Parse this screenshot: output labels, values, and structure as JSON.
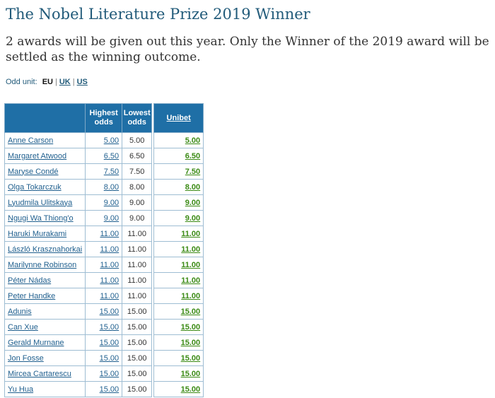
{
  "page": {
    "title": "The Nobel Literature Prize 2019 Winner",
    "subtitle": "2 awards will be given out this year. Only the Winner of the 2019 award will be settled as the winning outcome."
  },
  "odd_unit": {
    "label": "Odd unit:",
    "options": [
      "EU",
      "UK",
      "US"
    ],
    "selected": "EU"
  },
  "table": {
    "headers": {
      "name": "",
      "highest": "Highest odds",
      "lowest": "Lowest odds",
      "bookmaker": "Unibet"
    },
    "rows": [
      {
        "name": "Anne Carson",
        "highest": "5.00",
        "lowest": "5.00",
        "unibet": "5.00"
      },
      {
        "name": "Margaret Atwood",
        "highest": "6.50",
        "lowest": "6.50",
        "unibet": "6.50"
      },
      {
        "name": "Maryse Condé",
        "highest": "7.50",
        "lowest": "7.50",
        "unibet": "7.50"
      },
      {
        "name": "Olga Tokarczuk",
        "highest": "8.00",
        "lowest": "8.00",
        "unibet": "8.00"
      },
      {
        "name": "Lyudmila Ulitskaya",
        "highest": "9.00",
        "lowest": "9.00",
        "unibet": "9.00"
      },
      {
        "name": "Ngugi Wa Thiong'o",
        "highest": "9.00",
        "lowest": "9.00",
        "unibet": "9.00"
      },
      {
        "name": "Haruki Murakami",
        "highest": "11.00",
        "lowest": "11.00",
        "unibet": "11.00"
      },
      {
        "name": "László Krasznahorkai",
        "highest": "11.00",
        "lowest": "11.00",
        "unibet": "11.00"
      },
      {
        "name": "Marilynne Robinson",
        "highest": "11.00",
        "lowest": "11.00",
        "unibet": "11.00"
      },
      {
        "name": "Péter Nádas",
        "highest": "11.00",
        "lowest": "11.00",
        "unibet": "11.00"
      },
      {
        "name": "Peter Handke",
        "highest": "11.00",
        "lowest": "11.00",
        "unibet": "11.00"
      },
      {
        "name": "Adunis",
        "highest": "15.00",
        "lowest": "15.00",
        "unibet": "15.00"
      },
      {
        "name": "Can Xue",
        "highest": "15.00",
        "lowest": "15.00",
        "unibet": "15.00"
      },
      {
        "name": "Gerald Murnane",
        "highest": "15.00",
        "lowest": "15.00",
        "unibet": "15.00"
      },
      {
        "name": "Jon Fosse",
        "highest": "15.00",
        "lowest": "15.00",
        "unibet": "15.00"
      },
      {
        "name": "Mircea Cartarescu",
        "highest": "15.00",
        "lowest": "15.00",
        "unibet": "15.00"
      },
      {
        "name": "Yu Hua",
        "highest": "15.00",
        "lowest": "15.00",
        "unibet": "15.00"
      }
    ]
  },
  "colors": {
    "header_bg": "#1f6fa6",
    "title": "#225b7a",
    "link": "#1f5f8e",
    "bookmaker_odds": "#3a8a14"
  }
}
